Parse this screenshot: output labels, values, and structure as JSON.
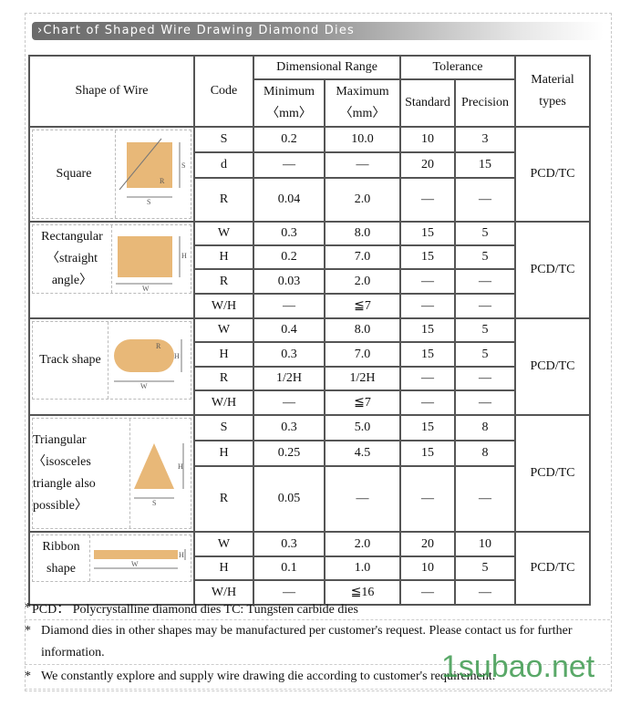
{
  "title": "Chart of Shaped Wire Drawing Diamond Dies",
  "title_icon": "double-chevron-right-icon",
  "headers": {
    "shape": "Shape of Wire",
    "code": "Code",
    "range": "Dimensional Range",
    "min": "Minimum",
    "max": "Maximum",
    "unit": "〈mm〉",
    "tolerance": "Tolerance",
    "standard": "Standard",
    "precision": "Precision",
    "material": "Material types"
  },
  "groups": [
    {
      "shape": "Square",
      "material": "PCD/TC",
      "rows": [
        [
          "S",
          "0.2",
          "10.0",
          "10",
          "3"
        ],
        [
          "d",
          "—",
          "—",
          "20",
          "15"
        ],
        [
          "R",
          "0.04",
          "2.0",
          "—",
          "—"
        ]
      ]
    },
    {
      "shape": "Rectangular〈straight angle〉",
      "material": "PCD/TC",
      "rows": [
        [
          "W",
          "0.3",
          "8.0",
          "15",
          "5"
        ],
        [
          "H",
          "0.2",
          "7.0",
          "15",
          "5"
        ],
        [
          "R",
          "0.03",
          "2.0",
          "—",
          "—"
        ],
        [
          "W/H",
          "—",
          "≦7",
          "—",
          "—"
        ]
      ]
    },
    {
      "shape": "Track shape",
      "material": "PCD/TC",
      "rows": [
        [
          "W",
          "0.4",
          "8.0",
          "15",
          "5"
        ],
        [
          "H",
          "0.3",
          "7.0",
          "15",
          "5"
        ],
        [
          "R",
          "1/2H",
          "1/2H",
          "—",
          "—"
        ],
        [
          "W/H",
          "—",
          "≦7",
          "—",
          "—"
        ]
      ]
    },
    {
      "shape": "Triangular〈isosceles triangle also possible〉",
      "material": "PCD/TC",
      "rows": [
        [
          "S",
          "0.3",
          "5.0",
          "15",
          "8"
        ],
        [
          "H",
          "0.25",
          "4.5",
          "15",
          "8"
        ],
        [
          "R",
          "0.05",
          "—",
          "—",
          "—"
        ]
      ]
    },
    {
      "shape": "Ribbon shape",
      "material": "PCD/TC",
      "rows": [
        [
          "W",
          "0.3",
          "2.0",
          "20",
          "10"
        ],
        [
          "H",
          "0.1",
          "1.0",
          "10",
          "5"
        ],
        [
          "W/H",
          "—",
          "≦16",
          "—",
          "—"
        ]
      ]
    }
  ],
  "notes": [
    {
      "star": "*",
      "text": "PCD： Polycrystalline diamond dies   TC: Tungsten carbide dies"
    },
    {
      "star": "*",
      "text": "Diamond dies in other shapes may be manufactured per customer's request. Please contact us for further information."
    },
    {
      "star": "*",
      "text": "We constantly explore and supply wire drawing die according to customer's requirement."
    }
  ],
  "watermark": "1subao.net",
  "colors": {
    "shape_fill": "#e8b878",
    "border": "#555555",
    "watermark": "#3d9a4e"
  }
}
